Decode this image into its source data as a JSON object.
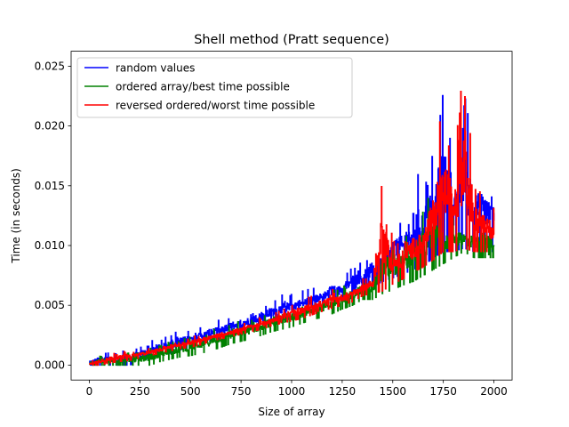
{
  "chart_data": {
    "type": "line",
    "title": "Shell method (Pratt sequence)",
    "xlabel": "Size of array",
    "ylabel": "Time (in seconds)",
    "xlim": [
      -90,
      2090
    ],
    "ylim": [
      -0.00125,
      0.02625
    ],
    "x_ticks": [
      0,
      250,
      500,
      750,
      1000,
      1250,
      1500,
      1750,
      2000
    ],
    "x_tick_labels": [
      "0",
      "250",
      "500",
      "750",
      "1000",
      "1250",
      "1500",
      "1750",
      "2000"
    ],
    "y_ticks": [
      0.0,
      0.005,
      0.01,
      0.015,
      0.02,
      0.025
    ],
    "y_tick_labels": [
      "0.000",
      "0.005",
      "0.010",
      "0.015",
      "0.020",
      "0.025"
    ],
    "grid": false,
    "legend_position": "top-left",
    "series": [
      {
        "name": "random values",
        "color": "#0000ff",
        "x": [
          0,
          50,
          100,
          150,
          200,
          250,
          300,
          350,
          400,
          450,
          500,
          550,
          600,
          650,
          700,
          750,
          800,
          850,
          900,
          950,
          1000,
          1050,
          1100,
          1150,
          1200,
          1250,
          1300,
          1350,
          1400,
          1450,
          1500,
          1550,
          1600,
          1650,
          1700,
          1750,
          1800,
          1850,
          1900,
          1950,
          2000
        ],
        "y_low": [
          0,
          0,
          0,
          0,
          0,
          0.0005,
          0.0005,
          0.001,
          0.001,
          0.0013,
          0.0015,
          0.0018,
          0.002,
          0.0022,
          0.0025,
          0.0028,
          0.003,
          0.0033,
          0.0036,
          0.0038,
          0.004,
          0.0043,
          0.0046,
          0.005,
          0.0053,
          0.0056,
          0.006,
          0.0063,
          0.0066,
          0.007,
          0.0073,
          0.0076,
          0.008,
          0.0083,
          0.009,
          0.0095,
          0.0095,
          0.0098,
          0.0095,
          0.0095,
          0.0095
        ],
        "y_high": [
          0.0005,
          0.0011,
          0.0011,
          0.0012,
          0.0015,
          0.0016,
          0.002,
          0.0022,
          0.0026,
          0.003,
          0.003,
          0.0033,
          0.0037,
          0.0038,
          0.0043,
          0.0043,
          0.0047,
          0.0052,
          0.0055,
          0.006,
          0.0062,
          0.0063,
          0.0065,
          0.0067,
          0.0075,
          0.0072,
          0.0085,
          0.0087,
          0.01,
          0.0105,
          0.0125,
          0.013,
          0.016,
          0.0165,
          0.0185,
          0.0245,
          0.0165,
          0.0235,
          0.0175,
          0.0178,
          0.0155
        ]
      },
      {
        "name": "ordered array/best time possible",
        "color": "#008000",
        "x": [
          0,
          50,
          100,
          150,
          200,
          250,
          300,
          350,
          400,
          450,
          500,
          550,
          600,
          650,
          700,
          750,
          800,
          850,
          900,
          950,
          1000,
          1050,
          1100,
          1150,
          1200,
          1250,
          1300,
          1350,
          1400,
          1450,
          1500,
          1550,
          1600,
          1650,
          1700,
          1750,
          1800,
          1850,
          1900,
          1950,
          2000
        ],
        "y_low": [
          0,
          0,
          0,
          0,
          0,
          0,
          0,
          0.0003,
          0.0005,
          0.0007,
          0.0008,
          0.001,
          0.0012,
          0.0015,
          0.0018,
          0.002,
          0.0022,
          0.0025,
          0.0028,
          0.003,
          0.0032,
          0.0035,
          0.0038,
          0.004,
          0.0043,
          0.0047,
          0.005,
          0.0055,
          0.0055,
          0.006,
          0.0063,
          0.0067,
          0.007,
          0.0075,
          0.008,
          0.0085,
          0.009,
          0.0095,
          0.009,
          0.009,
          0.009
        ],
        "y_high": [
          0.0002,
          0.0008,
          0.001,
          0.001,
          0.001,
          0.0012,
          0.0015,
          0.0017,
          0.002,
          0.0022,
          0.0025,
          0.0028,
          0.003,
          0.0033,
          0.0035,
          0.0038,
          0.004,
          0.0043,
          0.0046,
          0.005,
          0.0052,
          0.0055,
          0.0058,
          0.006,
          0.0063,
          0.0067,
          0.007,
          0.0075,
          0.008,
          0.0112,
          0.0112,
          0.011,
          0.012,
          0.0135,
          0.0145,
          0.0125,
          0.0125,
          0.012,
          0.012,
          0.0125,
          0.0115
        ]
      },
      {
        "name": "reversed ordered/worst time possible",
        "color": "#ff0000",
        "x": [
          0,
          50,
          100,
          150,
          200,
          250,
          300,
          350,
          400,
          450,
          500,
          550,
          600,
          650,
          700,
          750,
          800,
          850,
          900,
          950,
          1000,
          1050,
          1100,
          1150,
          1200,
          1250,
          1300,
          1350,
          1400,
          1450,
          1500,
          1550,
          1600,
          1650,
          1700,
          1750,
          1800,
          1850,
          1900,
          1950,
          2000
        ],
        "y_low": [
          0,
          0,
          0.0002,
          0.0003,
          0.0004,
          0.0006,
          0.0008,
          0.001,
          0.0012,
          0.0014,
          0.0015,
          0.0017,
          0.002,
          0.0022,
          0.0024,
          0.0026,
          0.0028,
          0.003,
          0.0033,
          0.0035,
          0.0037,
          0.0039,
          0.0042,
          0.0045,
          0.0048,
          0.005,
          0.0053,
          0.0058,
          0.006,
          0.0062,
          0.0068,
          0.0072,
          0.0078,
          0.0082,
          0.0088,
          0.0095,
          0.0095,
          0.0098,
          0.0095,
          0.0095,
          0.0095
        ],
        "y_high": [
          0.0002,
          0.0008,
          0.001,
          0.0011,
          0.0012,
          0.0013,
          0.0015,
          0.0017,
          0.002,
          0.0022,
          0.0024,
          0.0026,
          0.0028,
          0.003,
          0.0032,
          0.0035,
          0.0038,
          0.004,
          0.0043,
          0.0048,
          0.0052,
          0.0055,
          0.0058,
          0.006,
          0.0063,
          0.0065,
          0.007,
          0.0072,
          0.008,
          0.016,
          0.0105,
          0.0112,
          0.0125,
          0.013,
          0.0175,
          0.0225,
          0.0175,
          0.025,
          0.0165,
          0.0145,
          0.0135
        ]
      }
    ]
  }
}
